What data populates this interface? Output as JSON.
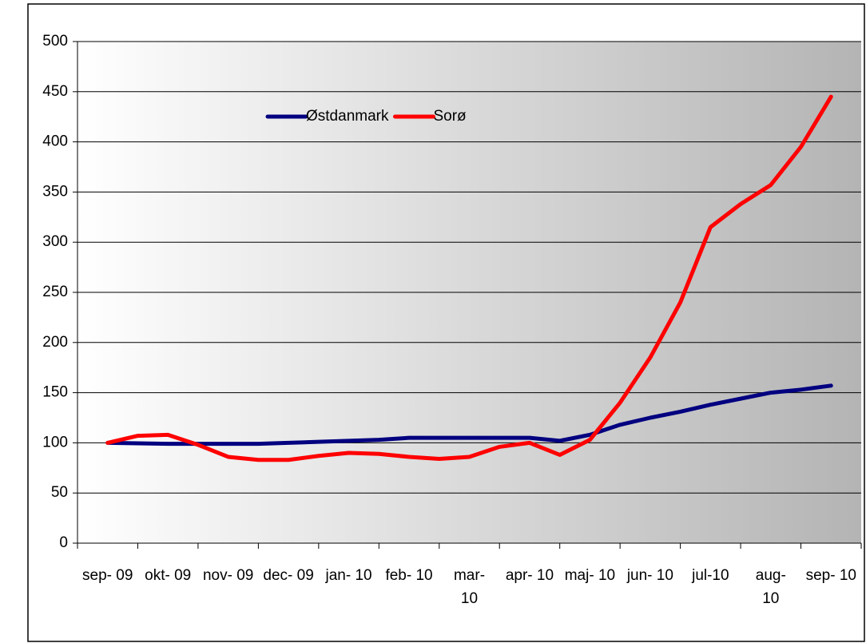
{
  "chart_data": {
    "type": "line",
    "x": [
      0,
      0.5,
      1,
      1.5,
      2,
      2.5,
      3,
      3.5,
      4,
      4.5,
      5,
      5.5,
      6,
      6.5,
      7,
      7.5,
      8,
      8.5,
      9,
      9.5,
      10,
      10.5,
      11,
      11.5,
      12
    ],
    "series": [
      {
        "name": "Østdanmark",
        "color": "#000080",
        "values": [
          100,
          99.5,
          99,
          99,
          99,
          99,
          100,
          101,
          102,
          103,
          105,
          105,
          105,
          105,
          105,
          102,
          108,
          118,
          125,
          131,
          138,
          144,
          150,
          153,
          157
        ]
      },
      {
        "name": "Sorø",
        "color": "#ff0000",
        "values": [
          100,
          107,
          108,
          98,
          86,
          83,
          83,
          87,
          90,
          89,
          86,
          84,
          86,
          96,
          100,
          88,
          103,
          140,
          185,
          240,
          315,
          338,
          357,
          395,
          445
        ]
      }
    ],
    "xlim": [
      -0.5,
      12.5
    ],
    "xticks": [
      {
        "value": 0,
        "label": "sep- 09"
      },
      {
        "value": 1,
        "label": "okt- 09"
      },
      {
        "value": 2,
        "label": "nov- 09"
      },
      {
        "value": 3,
        "label": "dec- 09"
      },
      {
        "value": 4,
        "label": "jan- 10"
      },
      {
        "value": 5,
        "label": "feb- 10"
      },
      {
        "value": 6,
        "label": "mar- 10"
      },
      {
        "value": 7,
        "label": "apr- 10"
      },
      {
        "value": 8,
        "label": "maj- 10"
      },
      {
        "value": 9,
        "label": "jun- 10"
      },
      {
        "value": 10,
        "label": "jul-10"
      },
      {
        "value": 11,
        "label": "aug- 10"
      },
      {
        "value": 12,
        "label": "sep- 10"
      }
    ],
    "ylim": [
      0,
      500
    ],
    "yticks": [
      0,
      50,
      100,
      150,
      200,
      250,
      300,
      350,
      400,
      450,
      500
    ],
    "grid": true
  }
}
